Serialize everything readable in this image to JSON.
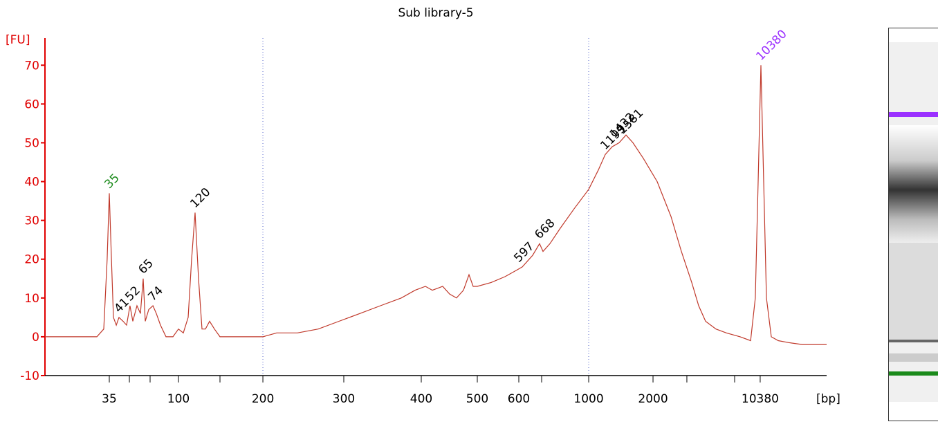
{
  "chart_data": {
    "type": "line",
    "title": "Sub library-5",
    "y_label": "[FU]",
    "x_label": "[bp]",
    "color": "#c0392b",
    "axis_color": "#e00000",
    "xlim": [
      0,
      100
    ],
    "ylim": [
      -10,
      77
    ],
    "yticks": [
      -10,
      0,
      10,
      20,
      30,
      40,
      50,
      60,
      70
    ],
    "xticks": [
      {
        "value": 8.23,
        "label": "35"
      },
      {
        "value": 17.08,
        "label": "100"
      },
      {
        "value": 27.88,
        "label": "200"
      },
      {
        "value": 38.23,
        "label": "300"
      },
      {
        "value": 48.14,
        "label": "400"
      },
      {
        "value": 55.31,
        "label": "500"
      },
      {
        "value": 60.62,
        "label": "600"
      },
      {
        "value": 69.56,
        "label": "1000"
      },
      {
        "value": 77.79,
        "label": "2000"
      },
      {
        "value": 91.5,
        "label": "10380"
      }
    ],
    "xminorticks": [
      10.8,
      13.45,
      22.39,
      63.54,
      82.12,
      88.23
    ],
    "marker_lines": [
      27.88,
      69.56
    ],
    "x": [
      0,
      3.1,
      6.64,
      7.52,
      7.96,
      8.23,
      8.5,
      8.76,
      9.12,
      9.47,
      10.0,
      10.44,
      10.88,
      11.24,
      11.77,
      12.21,
      12.57,
      12.83,
      13.27,
      13.81,
      14.25,
      14.78,
      15.49,
      16.37,
      17.08,
      17.7,
      18.32,
      18.76,
      19.2,
      19.65,
      20.09,
      20.53,
      21.06,
      21.68,
      22.39,
      23.45,
      26.11,
      27.88,
      29.65,
      32.3,
      34.96,
      37.61,
      40.27,
      42.92,
      45.58,
      47.35,
      48.67,
      49.56,
      50.88,
      51.77,
      52.65,
      53.54,
      54.25,
      54.78,
      55.31,
      57.08,
      58.85,
      60.18,
      61.06,
      62.39,
      63.27,
      63.72,
      64.6,
      65.93,
      67.7,
      69.56,
      70.8,
      71.68,
      72.57,
      73.45,
      74.34,
      75.22,
      76.55,
      78.32,
      80.09,
      81.42,
      82.74,
      83.63,
      84.51,
      85.84,
      87.17,
      88.94,
      90.27,
      90.88,
      91.24,
      91.59,
      91.95,
      92.3,
      92.92,
      93.81,
      95.13,
      96.9,
      100
    ],
    "values": [
      0,
      0,
      0,
      2,
      20,
      37,
      20,
      5,
      3,
      5,
      4,
      3,
      8,
      4,
      8,
      6,
      15,
      4,
      7,
      8,
      6,
      3,
      0,
      0,
      2,
      1,
      5,
      20,
      32,
      15,
      2,
      2,
      4,
      2,
      0,
      0,
      0,
      0,
      1,
      1,
      2,
      4,
      6,
      8,
      10,
      12,
      13,
      12,
      13,
      11,
      10,
      12,
      16,
      13,
      13,
      14,
      15.5,
      17,
      18,
      21,
      24,
      22,
      24,
      28,
      33,
      38,
      43,
      47,
      49,
      50,
      52,
      50,
      46,
      40,
      31,
      22,
      14,
      8,
      4,
      2,
      1,
      0,
      -1,
      10,
      40,
      70,
      40,
      10,
      0,
      -1,
      -1.5,
      -2,
      -2
    ],
    "peaks": [
      {
        "label": "35",
        "x": 8.23,
        "y": 37,
        "color": "#1a8a1a"
      },
      {
        "label": "41",
        "x": 9.47,
        "y": 5,
        "color": "#000000"
      },
      {
        "label": "52",
        "x": 10.88,
        "y": 8,
        "color": "#000000"
      },
      {
        "label": "65",
        "x": 12.57,
        "y": 15,
        "color": "#000000"
      },
      {
        "label": "74",
        "x": 13.81,
        "y": 8,
        "color": "#000000"
      },
      {
        "label": "120",
        "x": 19.2,
        "y": 32,
        "color": "#000000"
      },
      {
        "label": "597",
        "x": 60.62,
        "y": 18,
        "color": "#000000"
      },
      {
        "label": "668",
        "x": 63.27,
        "y": 24,
        "color": "#000000"
      },
      {
        "label": "1199",
        "x": 71.68,
        "y": 47,
        "color": "#000000"
      },
      {
        "label": "1432",
        "x": 72.85,
        "y": 50,
        "color": "#000000"
      },
      {
        "label": "1581",
        "x": 73.9,
        "y": 51,
        "color": "#000000"
      },
      {
        "label": "10380",
        "x": 91.59,
        "y": 70,
        "color": "#9b30ff"
      }
    ]
  }
}
